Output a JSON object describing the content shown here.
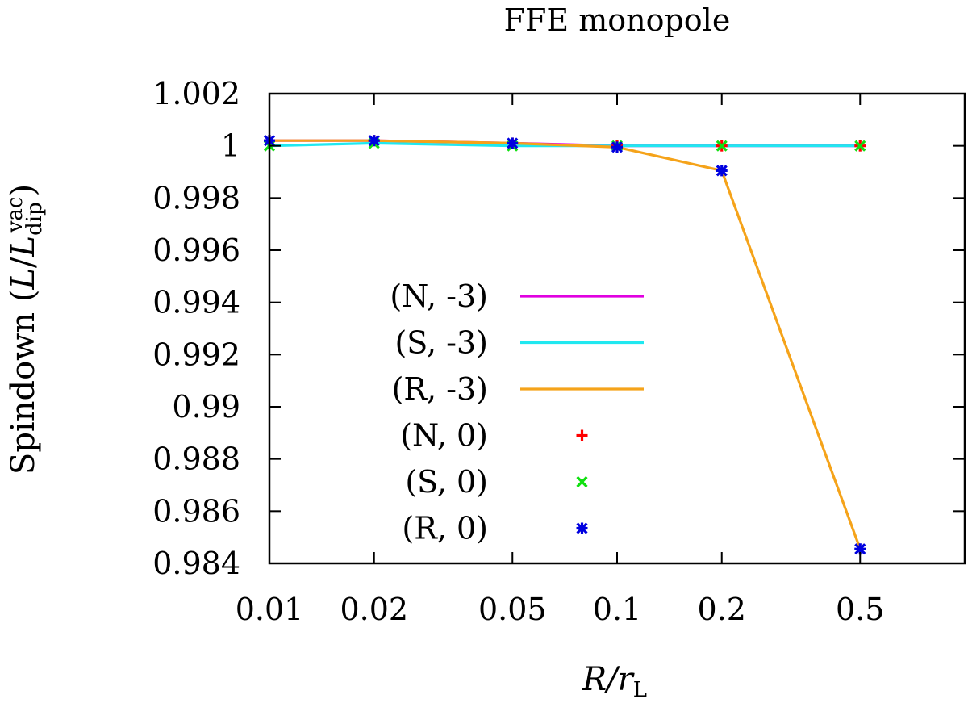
{
  "chart_data": {
    "type": "line",
    "title": "FFE monopole",
    "xlabel": "R/rL",
    "ylabel": "Spindown (L/Lvacdip)",
    "xlim": [
      0.01,
      1.0
    ],
    "xscale": "log",
    "ylim": [
      0.984,
      1.002
    ],
    "x_ticks": [
      "0.01",
      "0.02",
      "0.05",
      "0.1",
      "0.2",
      "0.5"
    ],
    "y_ticks": [
      "1.002",
      "1",
      "0.998",
      "0.996",
      "0.994",
      "0.992",
      "0.99",
      "0.988",
      "0.986",
      "0.984"
    ],
    "x": [
      0.01,
      0.02,
      0.05,
      0.1,
      0.2,
      0.5
    ],
    "legend_position": "left",
    "grid": false,
    "series": [
      {
        "name": "(N, -3)",
        "style": "line",
        "color": "#e000e0",
        "values": [
          1.0002,
          1.0002,
          1.0001,
          1.0,
          1.0,
          1.0
        ]
      },
      {
        "name": "(S, -3)",
        "style": "line",
        "color": "#20e8f0",
        "values": [
          1.0,
          1.0001,
          1.0,
          1.0,
          1.0,
          1.0
        ]
      },
      {
        "name": "(R, -3)",
        "style": "line",
        "color": "#f5a31a",
        "values": [
          1.0002,
          1.0002,
          1.0001,
          0.99995,
          0.99905,
          0.98455
        ]
      },
      {
        "name": "(N, 0)",
        "style": "marker",
        "marker": "plus",
        "color": "#ff0000",
        "values": [
          1.0002,
          1.0002,
          1.0001,
          1.0,
          1.0,
          1.0
        ]
      },
      {
        "name": "(S, 0)",
        "style": "marker",
        "marker": "cross",
        "color": "#10e010",
        "values": [
          1.0,
          1.0001,
          1.0,
          1.0,
          1.0,
          1.0
        ]
      },
      {
        "name": "(R, 0)",
        "style": "marker",
        "marker": "star",
        "color": "#0000e0",
        "values": [
          1.0002,
          1.0002,
          1.0001,
          0.99995,
          0.99905,
          0.98455
        ]
      }
    ]
  }
}
